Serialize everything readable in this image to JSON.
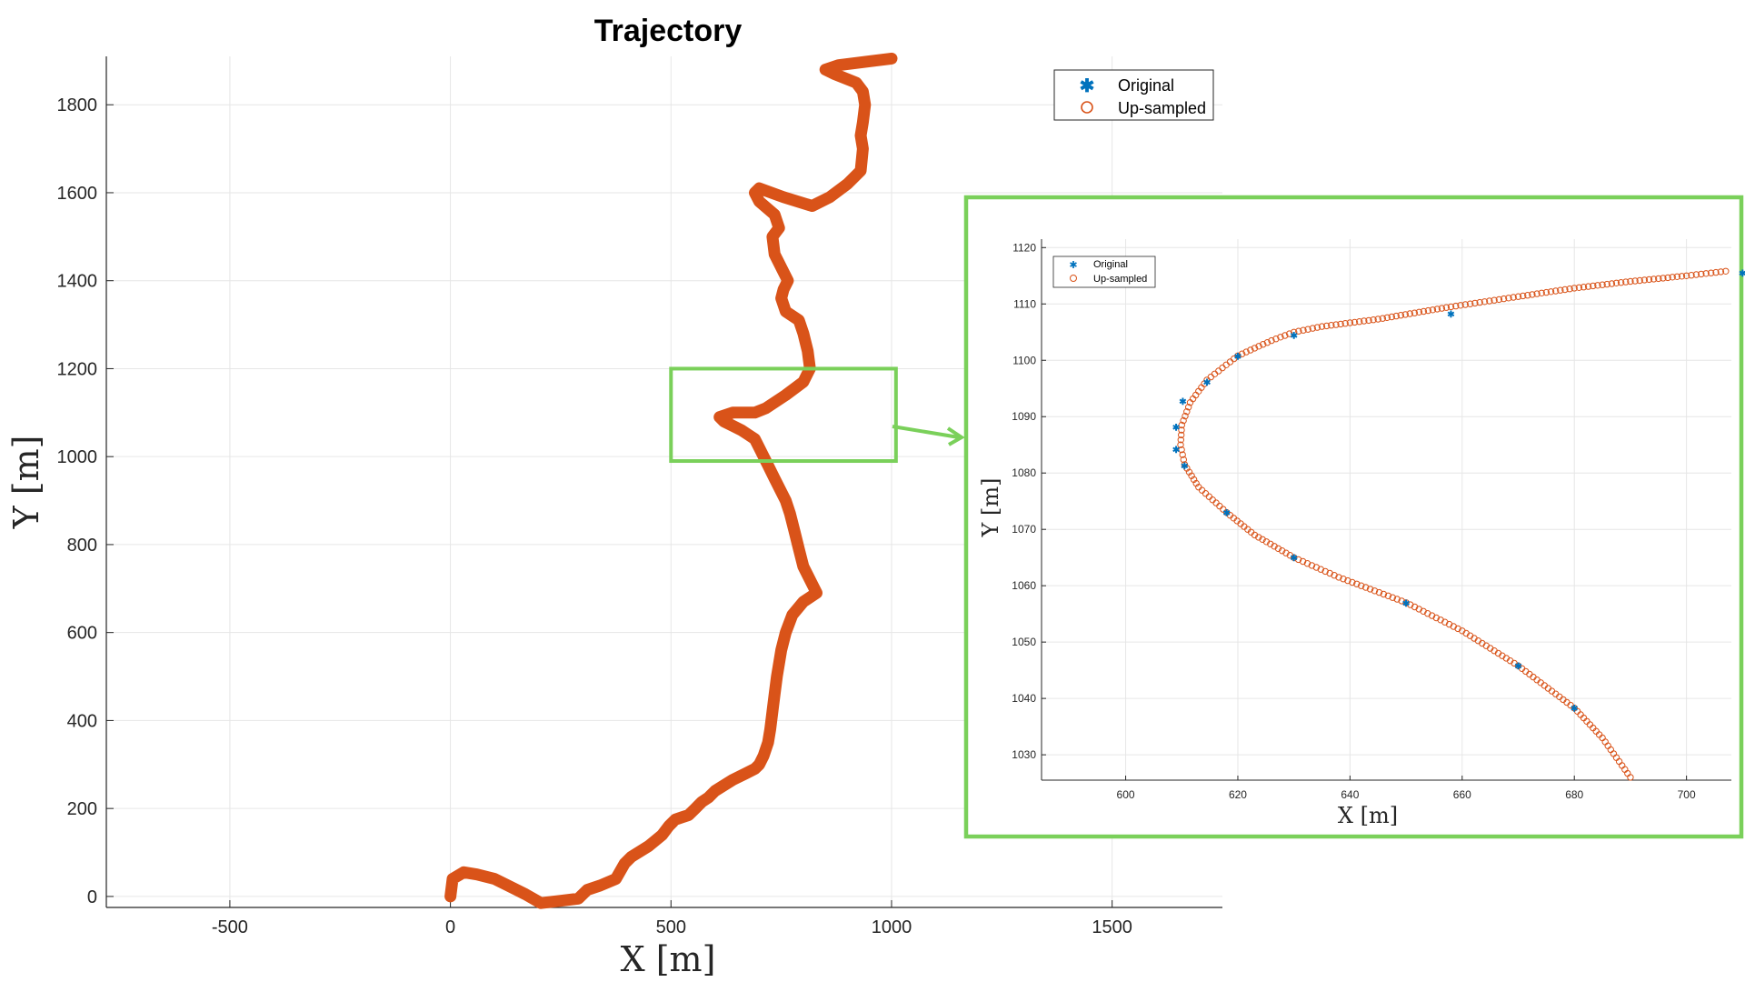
{
  "chart_data": [
    {
      "type": "line",
      "title": "Trajectory",
      "xlabel": "X [m]",
      "ylabel": "Y [m]",
      "xlim": [
        -780,
        1750
      ],
      "ylim": [
        -25,
        1910
      ],
      "xticks": [
        -500,
        0,
        500,
        1000,
        1500
      ],
      "xtick_labels": [
        "-500",
        "0",
        "500",
        "1000",
        "1500"
      ],
      "yticks": [
        0,
        200,
        400,
        600,
        800,
        1000,
        1200,
        1400,
        1600,
        1800
      ],
      "ytick_labels": [
        "0",
        "200",
        "400",
        "600",
        "800",
        "1000",
        "1200",
        "1400",
        "1600",
        "1800"
      ],
      "grid": true,
      "legend_position": "top-right",
      "series": [
        {
          "name": "Original",
          "marker": "asterisk",
          "color": "#0072BD"
        },
        {
          "name": "Up-sampled",
          "marker": "circle",
          "color": "#D95319",
          "x": [
            0,
            5,
            30,
            60,
            100,
            140,
            170,
            205,
            250,
            290,
            310,
            340,
            375,
            395,
            410,
            450,
            480,
            495,
            510,
            525,
            540,
            555,
            570,
            585,
            600,
            640,
            670,
            690,
            700,
            710,
            720,
            725,
            730,
            735,
            740,
            750,
            760,
            775,
            800,
            830,
            815,
            800,
            790,
            780,
            770,
            760,
            735,
            720,
            700,
            690,
            675,
            660,
            640,
            620,
            610,
            640,
            690,
            715,
            760,
            800,
            815,
            810,
            800,
            790,
            760,
            750,
            755,
            765,
            735,
            730,
            745,
            735,
            700,
            690,
            700,
            755,
            820,
            860,
            900,
            930,
            935,
            930,
            935,
            940,
            935,
            920,
            870,
            850,
            880,
            960,
            1000
          ],
          "y": [
            0,
            40,
            55,
            50,
            40,
            20,
            5,
            -15,
            -10,
            -5,
            15,
            25,
            40,
            75,
            90,
            115,
            140,
            160,
            175,
            180,
            185,
            200,
            215,
            225,
            240,
            265,
            280,
            290,
            300,
            320,
            350,
            380,
            420,
            460,
            500,
            560,
            600,
            640,
            670,
            690,
            720,
            750,
            790,
            830,
            870,
            900,
            950,
            980,
            1020,
            1040,
            1050,
            1060,
            1070,
            1080,
            1090,
            1100,
            1100,
            1110,
            1140,
            1170,
            1200,
            1240,
            1280,
            1310,
            1330,
            1360,
            1380,
            1400,
            1460,
            1500,
            1520,
            1550,
            1580,
            1600,
            1610,
            1590,
            1570,
            1590,
            1620,
            1650,
            1700,
            1730,
            1760,
            1800,
            1830,
            1850,
            1870,
            1880,
            1890,
            1900,
            1905
          ]
        }
      ]
    },
    {
      "type": "scatter",
      "xlabel": "X [m]",
      "ylabel": "Y [m]",
      "xlim": [
        585,
        708
      ],
      "ylim": [
        1025.5,
        1121.5
      ],
      "xticks": [
        600,
        620,
        640,
        660,
        680,
        700
      ],
      "xtick_labels": [
        "600",
        "620",
        "640",
        "660",
        "680",
        "700"
      ],
      "yticks": [
        1030,
        1040,
        1050,
        1060,
        1070,
        1080,
        1090,
        1100,
        1110,
        1120
      ],
      "ytick_labels": [
        "1030",
        "1040",
        "1050",
        "1060",
        "1070",
        "1080",
        "1090",
        "1100",
        "1110",
        "1120"
      ],
      "grid": true,
      "legend_position": "top-left",
      "series": [
        {
          "name": "Original",
          "marker": "asterisk",
          "color": "#0072BD",
          "x": [
            710,
            658,
            630,
            620,
            614.5,
            610.2,
            609,
            609,
            610.5,
            618,
            630,
            650,
            670,
            680
          ],
          "y": [
            1115.5,
            1108.3,
            1104.5,
            1100.8,
            1096.2,
            1092.8,
            1088.2,
            1084.2,
            1081.3,
            1073,
            1065,
            1057,
            1045.8,
            1038.3
          ]
        },
        {
          "name": "Up-sampled",
          "marker": "circle",
          "color": "#D95319",
          "x": [
            707,
            700,
            690,
            680,
            670,
            658,
            645,
            635,
            630,
            626,
            620,
            614.5,
            611.5,
            610,
            609.8,
            610.5,
            613,
            618,
            623,
            630,
            638,
            650,
            660,
            670,
            680,
            685,
            690
          ],
          "y": [
            1115.8,
            1115,
            1114,
            1112.8,
            1111.3,
            1109.5,
            1107.3,
            1106,
            1105,
            1103.5,
            1100.8,
            1096.5,
            1092.5,
            1088.5,
            1085,
            1081.5,
            1077.5,
            1073,
            1069,
            1065,
            1061.5,
            1057,
            1052,
            1045.8,
            1038.3,
            1033,
            1026
          ]
        }
      ]
    }
  ],
  "annotations": {
    "highlight_color": "#7AD05A",
    "zoom_region": {
      "x": [
        500,
        1010
      ],
      "y": [
        990,
        1200
      ]
    }
  }
}
